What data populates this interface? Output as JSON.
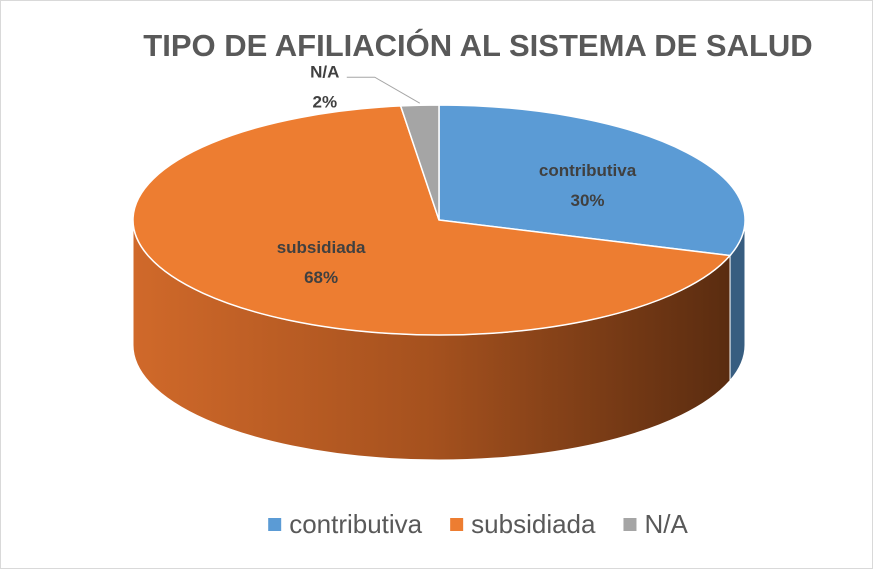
{
  "chart_data": {
    "type": "pie",
    "title": "TIPO DE AFILIACIÓN AL SISTEMA DE SALUD",
    "categories": [
      "contributiva",
      "subsidiada",
      "N/A"
    ],
    "values": [
      30,
      68,
      2
    ],
    "value_labels": [
      "30%",
      "68%",
      "2%"
    ],
    "colors": [
      "#5b9bd5",
      "#ed7d31",
      "#a5a5a5"
    ],
    "legend": "bottom"
  }
}
